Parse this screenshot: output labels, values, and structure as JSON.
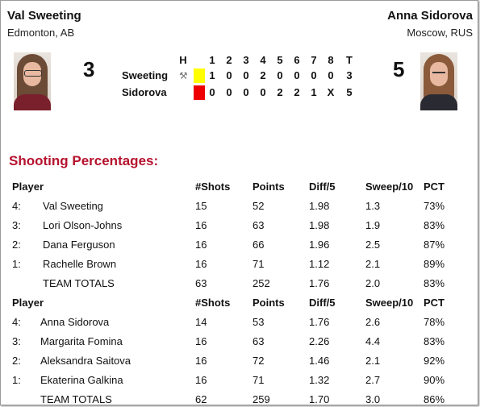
{
  "home": {
    "name": "Val Sweeting",
    "location": "Edmonton, AB",
    "score": "3"
  },
  "away": {
    "name": "Anna Sidorova",
    "location": "Moscow, RUS",
    "score": "5"
  },
  "linescore": {
    "headers": [
      "H",
      "1",
      "2",
      "3",
      "4",
      "5",
      "6",
      "7",
      "8",
      "T"
    ],
    "rows": [
      {
        "team": "Sweeting",
        "hammer_color": "#ffff00",
        "ends": [
          "1",
          "0",
          "0",
          "2",
          "0",
          "0",
          "0",
          "0",
          "3"
        ]
      },
      {
        "team": "Sidorova",
        "hammer_color": "#ee0000",
        "ends": [
          "0",
          "0",
          "0",
          "0",
          "2",
          "2",
          "1",
          "X",
          "5"
        ]
      }
    ],
    "hammer_icon": "hammer-icon"
  },
  "stats": {
    "title": "Shooting Percentages:",
    "columns": [
      "Player",
      "#Shots",
      "Points",
      "Diff/5",
      "Sweep/10",
      "PCT"
    ],
    "teams": [
      {
        "players": [
          [
            "4:",
            "Val Sweeting",
            "15",
            "52",
            "1.98",
            "1.3",
            "73%"
          ],
          [
            "3:",
            "Lori Olson-Johns",
            "16",
            "63",
            "1.98",
            "1.9",
            "83%"
          ],
          [
            "2:",
            "Dana Ferguson",
            "16",
            "66",
            "1.96",
            "2.5",
            "87%"
          ],
          [
            "1:",
            "Rachelle Brown",
            "16",
            "71",
            "1.12",
            "2.1",
            "89%"
          ]
        ],
        "totals": [
          "",
          "TEAM TOTALS",
          "63",
          "252",
          "1.76",
          "2.0",
          "83%"
        ]
      },
      {
        "players": [
          [
            "4:",
            "Anna Sidorova",
            "14",
            "53",
            "1.76",
            "2.6",
            "78%"
          ],
          [
            "3:",
            "Margarita Fomina",
            "16",
            "63",
            "2.26",
            "4.4",
            "83%"
          ],
          [
            "2:",
            "Aleksandra Saitova",
            "16",
            "72",
            "1.46",
            "2.1",
            "92%"
          ],
          [
            "1:",
            "Ekaterina Galkina",
            "16",
            "71",
            "1.32",
            "2.7",
            "90%"
          ]
        ],
        "totals": [
          "",
          "TEAM TOTALS",
          "62",
          "259",
          "1.70",
          "3.0",
          "86%"
        ]
      }
    ]
  }
}
